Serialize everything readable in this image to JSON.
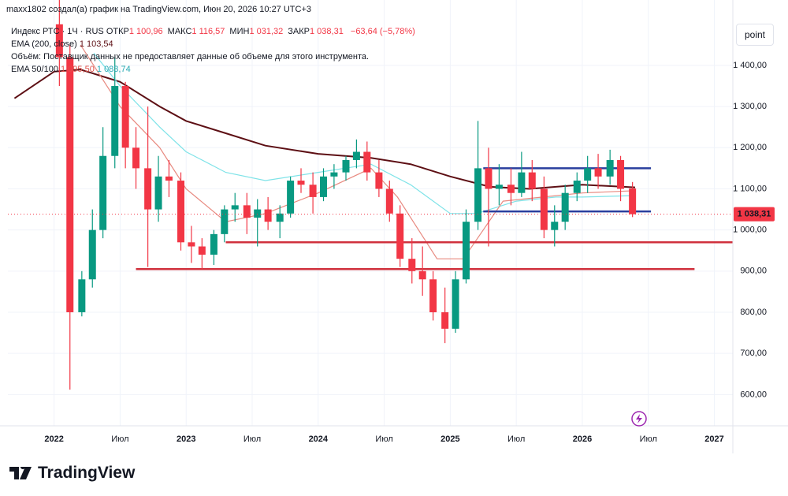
{
  "header": "maxx1802 создал(а) график на TradingView.com, Июн 20, 2026 10:27 UTC+3",
  "legend": {
    "symbol": "Индекс РТС · 1Ч · RUS",
    "ohlc": [
      {
        "label": "ОТКР",
        "value": "1 100,96"
      },
      {
        "label": "МАКС",
        "value": "1 116,57"
      },
      {
        "label": "МИН",
        "value": "1 031,32"
      },
      {
        "label": "ЗАКР",
        "value": "1 038,31"
      }
    ],
    "change": "−63,64 (−5,78%)",
    "ema200_label": "EMA (200, close)",
    "ema200_value": "1 103,54",
    "volume": "Объём: Поставщик данных не предоставляет данные об объеме для этого инструмента.",
    "ema50_label": "EMA 50/100",
    "ema50_value": "1 095,50",
    "ema100_value": "1 083,74"
  },
  "button": "point",
  "logo": "TradingView",
  "chart_data": {
    "type": "candlestick",
    "up_color": "#089981",
    "down_color": "#f23645",
    "x": [
      2022.04,
      2022.12,
      2022.21,
      2022.29,
      2022.37,
      2022.46,
      2022.54,
      2022.62,
      2022.71,
      2022.79,
      2022.87,
      2022.96,
      2023.04,
      2023.12,
      2023.21,
      2023.29,
      2023.37,
      2023.46,
      2023.54,
      2023.62,
      2023.71,
      2023.79,
      2023.87,
      2023.96,
      2024.04,
      2024.12,
      2024.21,
      2024.29,
      2024.37,
      2024.46,
      2024.54,
      2024.62,
      2024.71,
      2024.79,
      2024.87,
      2024.96,
      2025.04,
      2025.12,
      2025.21,
      2025.29,
      2025.37,
      2025.46,
      2025.54,
      2025.62,
      2025.71,
      2025.79,
      2025.87,
      2025.96,
      2026.04,
      2026.12,
      2026.21,
      2026.29,
      2026.38
    ],
    "open": [
      1500,
      1420,
      800,
      880,
      1000,
      1180,
      1350,
      1200,
      1150,
      1050,
      1130,
      1120,
      970,
      960,
      940,
      990,
      1050,
      1060,
      1030,
      1050,
      1020,
      1040,
      1120,
      1110,
      1080,
      1130,
      1140,
      1170,
      1190,
      1140,
      1100,
      1040,
      930,
      900,
      880,
      800,
      760,
      880,
      1020,
      1150,
      1100,
      1110,
      1090,
      1140,
      1100,
      1000,
      1020,
      1090,
      1120,
      1150,
      1130,
      1170,
      1100.96
    ],
    "high": [
      1560,
      1450,
      900,
      1050,
      1250,
      1420,
      1360,
      1250,
      1300,
      1180,
      1170,
      1140,
      1010,
      980,
      1000,
      1060,
      1090,
      1090,
      1075,
      1080,
      1060,
      1130,
      1150,
      1140,
      1150,
      1160,
      1180,
      1220,
      1215,
      1170,
      1120,
      1060,
      980,
      960,
      900,
      860,
      900,
      1050,
      1265,
      1200,
      1160,
      1150,
      1190,
      1170,
      1130,
      1060,
      1110,
      1140,
      1180,
      1185,
      1195,
      1180,
      1116.57
    ],
    "low": [
      1350,
      612,
      790,
      860,
      980,
      1150,
      1150,
      1100,
      910,
      1020,
      1080,
      950,
      920,
      905,
      915,
      970,
      1020,
      990,
      960,
      1000,
      980,
      1030,
      1090,
      1040,
      1070,
      1100,
      1120,
      1150,
      1120,
      1080,
      1020,
      910,
      870,
      840,
      780,
      725,
      750,
      870,
      1000,
      960,
      1060,
      1060,
      1080,
      1070,
      980,
      960,
      1000,
      1070,
      1090,
      1100,
      1110,
      1070,
      1031.32
    ],
    "close": [
      1420,
      800,
      880,
      1000,
      1180,
      1350,
      1200,
      1150,
      1050,
      1130,
      1120,
      970,
      960,
      940,
      990,
      1050,
      1060,
      1030,
      1050,
      1020,
      1040,
      1120,
      1110,
      1080,
      1130,
      1140,
      1170,
      1190,
      1140,
      1100,
      1040,
      930,
      900,
      880,
      800,
      760,
      880,
      1020,
      1150,
      1100,
      1110,
      1090,
      1140,
      1100,
      1000,
      1020,
      1090,
      1120,
      1150,
      1130,
      1170,
      1100,
      1038.31
    ],
    "series": [
      {
        "name": "EMA 200",
        "color": "#5d0f14",
        "x": [
          2021.7,
          2022.0,
          2022.2,
          2022.5,
          2022.8,
          2023.0,
          2023.3,
          2023.6,
          2024.0,
          2024.4,
          2024.7,
          2025.0,
          2025.3,
          2025.6,
          2026.0,
          2026.4
        ],
        "values": [
          1320,
          1385,
          1390,
          1360,
          1300,
          1265,
          1235,
          1205,
          1185,
          1175,
          1160,
          1130,
          1105,
          1100,
          1110,
          1103.54
        ]
      },
      {
        "name": "EMA 100",
        "color": "#7fe3e8",
        "x": [
          2022.3,
          2022.5,
          2022.8,
          2023.0,
          2023.3,
          2023.6,
          2024.0,
          2024.4,
          2024.7,
          2025.0,
          2025.2,
          2025.5,
          2025.8,
          2026.0,
          2026.4
        ],
        "values": [
          1430,
          1350,
          1250,
          1190,
          1140,
          1120,
          1140,
          1160,
          1110,
          1040,
          1040,
          1070,
          1080,
          1080,
          1083.74
        ]
      },
      {
        "name": "EMA 50",
        "color": "#e88a80",
        "x": [
          2022.2,
          2022.5,
          2022.8,
          2023.0,
          2023.3,
          2023.6,
          2024.0,
          2024.4,
          2024.6,
          2024.9,
          2025.1,
          2025.4,
          2025.7,
          2026.0,
          2026.4
        ],
        "values": [
          1450,
          1300,
          1200,
          1100,
          1020,
          1040,
          1090,
          1150,
          1080,
          930,
          930,
          1070,
          1080,
          1090,
          1095.5
        ]
      }
    ],
    "levels": [
      {
        "value": 1150,
        "from": 2025.25,
        "to": 2026.52,
        "color": "#2a3f9e"
      },
      {
        "value": 1045,
        "from": 2025.25,
        "to": 2026.52,
        "color": "#2a3f9e"
      },
      {
        "value": 970,
        "from": 2023.3,
        "to": 2027.14,
        "color": "#d0313d"
      },
      {
        "value": 905,
        "from": 2022.62,
        "to": 2026.85,
        "color": "#d0313d"
      }
    ],
    "last_price": {
      "value": 1038.31,
      "label": "1 038,31"
    },
    "xlim": [
      2021.65,
      2027.14
    ],
    "ylim": [
      524,
      1559
    ],
    "yticks": [
      {
        "value": 600,
        "label": "600,00"
      },
      {
        "value": 700,
        "label": "700,00"
      },
      {
        "value": 800,
        "label": "800,00"
      },
      {
        "value": 900,
        "label": "900,00"
      },
      {
        "value": 1000,
        "label": "1 000,00"
      },
      {
        "value": 1100,
        "label": "1 100,00"
      },
      {
        "value": 1200,
        "label": "1 200,00"
      },
      {
        "value": 1300,
        "label": "1 300,00"
      },
      {
        "value": 1400,
        "label": "1 400,00"
      }
    ],
    "xticks": [
      2022,
      {
        "value": 2022.5,
        "label": "Июл"
      },
      2023,
      {
        "value": 2023.5,
        "label": "Июл"
      },
      2024,
      {
        "value": 2024.5,
        "label": "Июл"
      },
      2025,
      {
        "value": 2025.5,
        "label": "Июл"
      },
      2026,
      {
        "value": 2026.5,
        "label": "Июл"
      },
      2027
    ],
    "grid": true
  }
}
